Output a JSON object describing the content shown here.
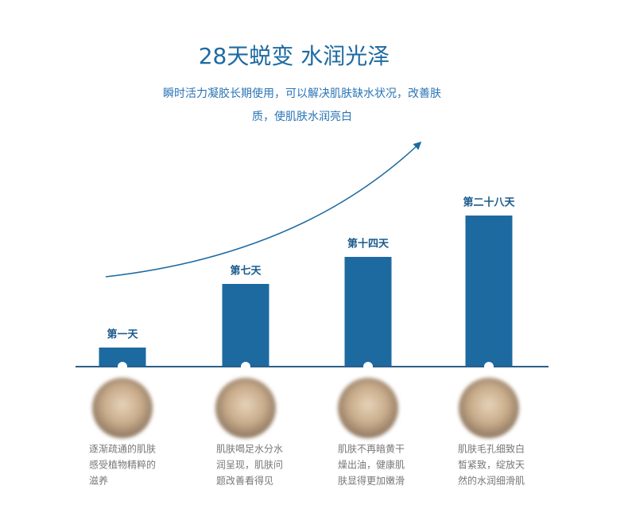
{
  "chart_data": {
    "type": "bar",
    "title": "28天蜕变 水润光泽",
    "subtitle": [
      "瞬时活力凝胶长期使用，可以解决肌肤缺水状况，改善肤",
      "质，使肌肤水润亮白"
    ],
    "categories": [
      "第一天",
      "第七天",
      "第十四天",
      "第二十八天"
    ],
    "values": [
      23,
      103,
      137,
      189
    ],
    "ylim": [
      0,
      200
    ],
    "color": "#1d6aa1",
    "descriptions": [
      [
        "逐渐疏通的肌肤",
        "感受植物精粹的",
        "滋养"
      ],
      [
        "肌肤喝足水分水",
        "润呈现，肌肤问",
        "题改善看得见"
      ],
      [
        "肌肤不再暗黄干",
        "燥出油，健康肌",
        "肤显得更加嫩滑"
      ],
      [
        "肌肤毛孔细致白",
        "皙紧致，绽放天",
        "然的水润细滑肌"
      ]
    ]
  }
}
